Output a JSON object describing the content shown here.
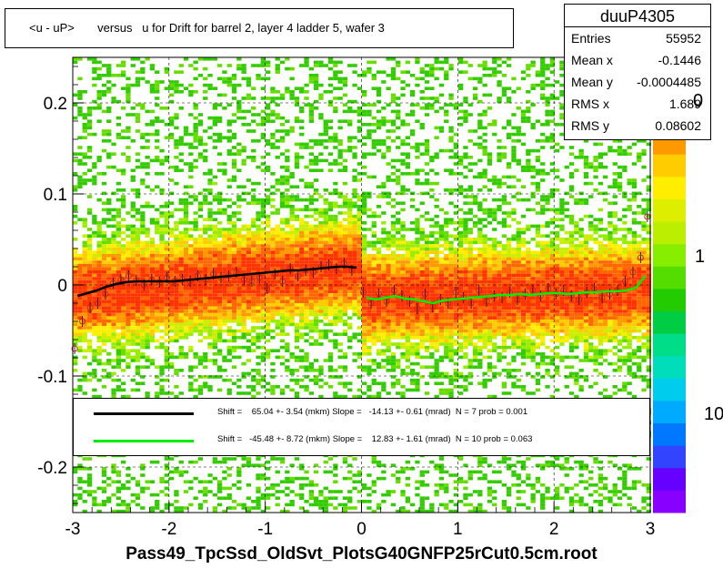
{
  "title": "<u - uP>       versus   u for Drift for barrel 2, layer 4 ladder 5, wafer 3",
  "stats": {
    "name": "duuP4305",
    "rows": [
      {
        "label": "Entries",
        "value": "55952"
      },
      {
        "label": "Mean x",
        "value": "-0.1446"
      },
      {
        "label": "Mean y",
        "value": "-0.0004485"
      },
      {
        "label": "RMS x",
        "value": "1.689"
      },
      {
        "label": "RMS y",
        "value": "0.08602"
      }
    ]
  },
  "legend": [
    {
      "color": "#000000",
      "text": "Shift =    65.04 +- 3.54 (mkm) Slope =   -14.13 +- 0.61 (mrad)  N = 7 prob = 0.001"
    },
    {
      "color": "#00ee00",
      "text": "Shift =   -45.48 +- 8.72 (mkm) Slope =    12.83 +- 1.61 (mrad)  N = 10 prob = 0.063"
    }
  ],
  "x_title": "Pass49_TpcSsd_OldSvt_PlotsG40GNFP25rCut0.5cm.root",
  "z_ticks": [
    "0",
    "1",
    "10"
  ],
  "chart_data": {
    "type": "heatmap",
    "xlim": [
      -3,
      3
    ],
    "ylim": [
      -0.25,
      0.25
    ],
    "x_ticks": [
      -3,
      -2,
      -1,
      0,
      1,
      2,
      3
    ],
    "y_ticks": [
      -0.2,
      -0.1,
      0,
      0.1,
      0.2
    ],
    "x_tick_labels": [
      "-3",
      "-2",
      "-1",
      "0",
      "1",
      "2",
      "3"
    ],
    "y_tick_labels": [
      "-0.2",
      "-0.1",
      "0",
      "0.1",
      "0.2"
    ],
    "grid": true,
    "series": [
      {
        "x": [
          -2.95,
          -2.85,
          -2.75,
          -2.65,
          -2.55,
          -2.45,
          -2.35,
          -2.25,
          -2.15,
          -2.05,
          -1.95,
          -1.85,
          -1.75,
          -1.65,
          -1.55,
          -1.45,
          -1.35,
          -1.25,
          -1.15,
          -1.05,
          -0.95,
          -0.85,
          -0.75,
          -0.65,
          -0.55,
          -0.45,
          -0.35,
          -0.25,
          -0.15,
          -0.05
        ],
        "y": [
          -0.012,
          -0.009,
          -0.006,
          -0.002,
          0.001,
          0.003,
          0.004,
          0.004,
          0.004,
          0.004,
          0.004,
          0.005,
          0.006,
          0.007,
          0.008,
          0.009,
          0.01,
          0.011,
          0.012,
          0.013,
          0.014,
          0.015,
          0.016,
          0.016,
          0.017,
          0.018,
          0.019,
          0.02,
          0.02,
          0.019
        ]
      },
      {
        "x": [
          0.05,
          0.15,
          0.25,
          0.35,
          0.45,
          0.55,
          0.65,
          0.75,
          0.85,
          0.95,
          1.05,
          1.15,
          1.25,
          1.35,
          1.45,
          1.55,
          1.65,
          1.75,
          1.85,
          1.95,
          2.05,
          2.15,
          2.25,
          2.35,
          2.45,
          2.55,
          2.65,
          2.75,
          2.85,
          2.95
        ],
        "y": [
          -0.014,
          -0.016,
          -0.014,
          -0.012,
          -0.015,
          -0.016,
          -0.018,
          -0.02,
          -0.017,
          -0.016,
          -0.015,
          -0.014,
          -0.013,
          -0.012,
          -0.011,
          -0.011,
          -0.01,
          -0.011,
          -0.01,
          -0.009,
          -0.009,
          -0.01,
          -0.009,
          -0.008,
          -0.008,
          -0.007,
          -0.007,
          -0.006,
          -0.003,
          0.01
        ]
      }
    ],
    "points": {
      "x": [
        -2.98,
        -2.9,
        -2.82,
        -2.74,
        -2.66,
        -2.58,
        -2.5,
        -2.42,
        -2.34,
        -2.26,
        -2.18,
        -2.1,
        -2.02,
        -1.94,
        -1.86,
        -1.78,
        -1.7,
        -1.62,
        -1.54,
        -1.46,
        -1.38,
        -1.3,
        -1.22,
        -1.14,
        -1.06,
        -0.98,
        -0.9,
        -0.82,
        -0.74,
        -0.66,
        -0.58,
        -0.5,
        -0.42,
        -0.34,
        -0.26,
        -0.18,
        -0.1,
        0.02,
        0.1,
        0.18,
        0.26,
        0.34,
        0.42,
        0.5,
        0.58,
        0.66,
        0.74,
        0.82,
        0.9,
        0.98,
        1.06,
        1.14,
        1.22,
        1.3,
        1.38,
        1.46,
        1.54,
        1.62,
        1.7,
        1.78,
        1.86,
        1.94,
        2.02,
        2.1,
        2.18,
        2.26,
        2.34,
        2.42,
        2.5,
        2.58,
        2.66,
        2.74,
        2.82,
        2.9,
        2.97
      ],
      "y": [
        -0.07,
        -0.04,
        -0.025,
        -0.02,
        -0.01,
        0.002,
        0.006,
        0.01,
        0.005,
        0.0,
        0.006,
        0.003,
        0.008,
        0.004,
        0.006,
        0.004,
        0.01,
        0.006,
        0.012,
        0.008,
        0.01,
        0.014,
        0.006,
        0.004,
        0.008,
        -0.004,
        0.012,
        0.004,
        0.018,
        0.01,
        0.016,
        0.014,
        0.02,
        0.022,
        0.018,
        0.024,
        0.016,
        -0.008,
        -0.02,
        -0.01,
        -0.018,
        -0.006,
        -0.012,
        -0.018,
        -0.026,
        -0.01,
        -0.024,
        -0.016,
        -0.02,
        -0.008,
        -0.014,
        -0.02,
        -0.006,
        -0.018,
        -0.012,
        -0.014,
        -0.008,
        -0.016,
        -0.01,
        -0.006,
        -0.012,
        -0.004,
        -0.01,
        -0.006,
        -0.012,
        -0.016,
        -0.008,
        -0.004,
        -0.014,
        -0.01,
        -0.006,
        0.004,
        0.014,
        0.03,
        0.075
      ]
    }
  }
}
